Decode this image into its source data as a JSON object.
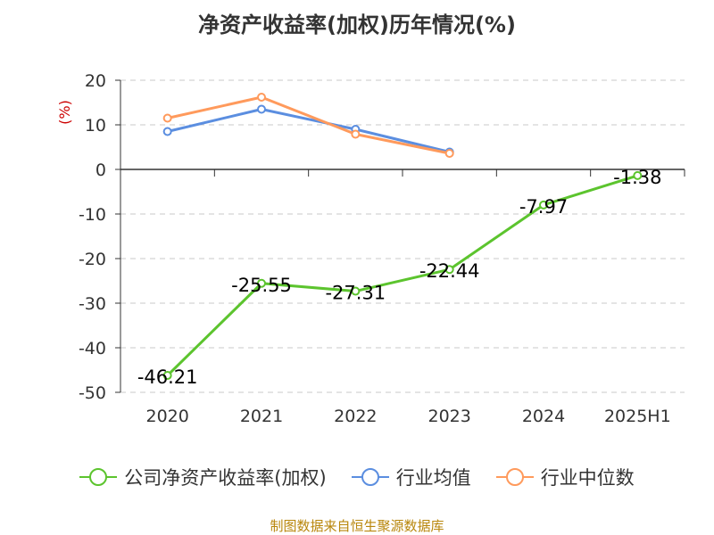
{
  "chart_data": {
    "type": "line",
    "title": "净资产收益率(加权)历年情况(%)",
    "ylabel": "(%)",
    "xlabel": "",
    "categories": [
      "2020",
      "2021",
      "2022",
      "2023",
      "2024",
      "2025H1"
    ],
    "ylim": [
      -50,
      20
    ],
    "yticks": [
      20,
      10,
      0,
      -10,
      -20,
      -30,
      -40,
      -50
    ],
    "grid": true,
    "legend_position": "bottom",
    "series": [
      {
        "name": "公司净资产收益率(加权)",
        "color": "#5cc42e",
        "values": [
          -46.21,
          -25.55,
          -27.31,
          -22.44,
          -7.97,
          -1.38
        ],
        "labels": [
          "-46.21",
          "-25.55",
          "-27.31",
          "-22.44",
          "-7.97",
          "-1.38"
        ]
      },
      {
        "name": "行业均值",
        "color": "#5b8ee0",
        "values": [
          8.5,
          13.5,
          9.0,
          3.9,
          null,
          null
        ]
      },
      {
        "name": "行业中位数",
        "color": "#ff9a5c",
        "values": [
          11.5,
          16.2,
          7.9,
          3.6,
          null,
          null
        ]
      }
    ]
  },
  "footer": {
    "source": "制图数据来自恒生聚源数据库"
  }
}
